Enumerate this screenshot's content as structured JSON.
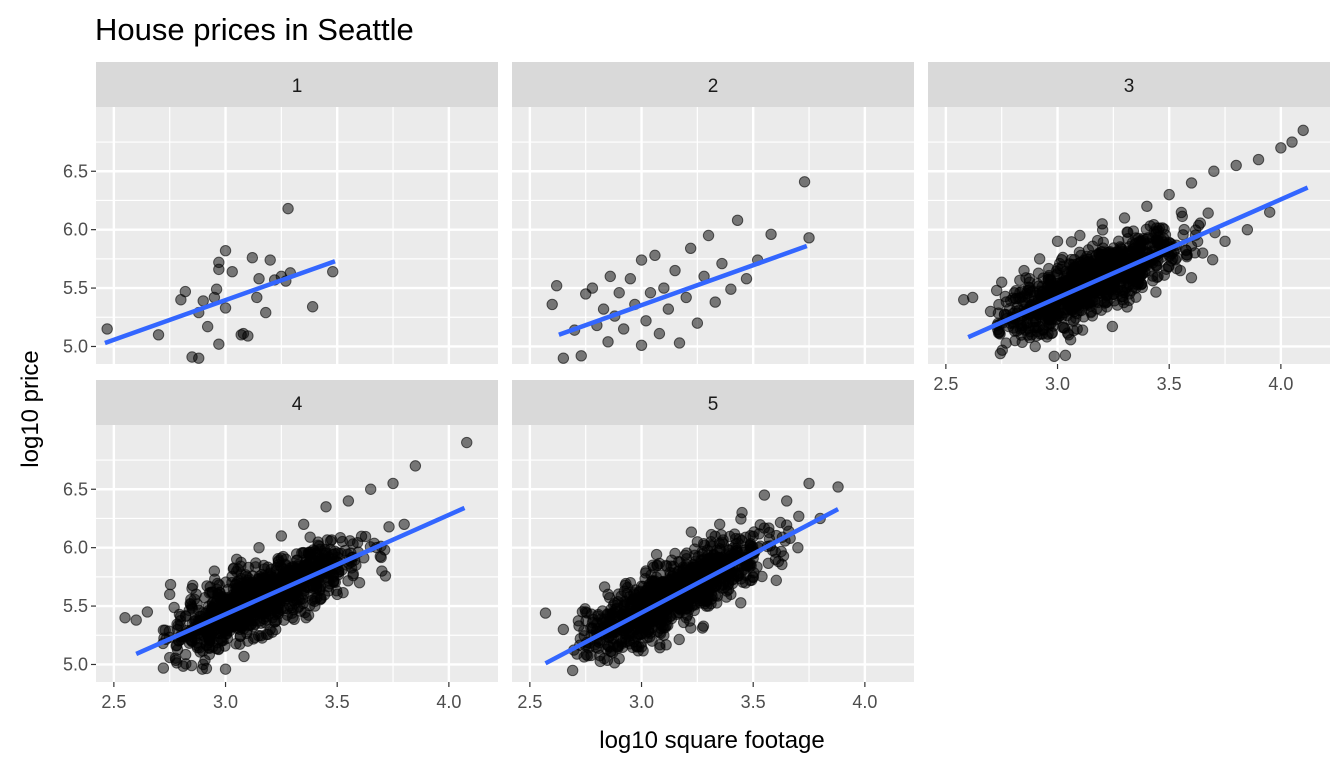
{
  "chart_data": {
    "type": "scatter",
    "title": "House prices in Seattle",
    "xlabel": "log10 square footage",
    "ylabel": "log10 price",
    "xlim": [
      2.42,
      4.22
    ],
    "ylim": [
      4.85,
      7.05
    ],
    "x_ticks": [
      2.5,
      3.0,
      3.5,
      4.0
    ],
    "x_tick_labels": [
      "2.5",
      "3.0",
      "3.5",
      "4.0"
    ],
    "y_ticks": [
      5.0,
      5.5,
      6.0,
      6.5
    ],
    "y_tick_labels": [
      "5.0",
      "5.5",
      "6.0",
      "6.5"
    ],
    "grid": true,
    "colors": {
      "points": "#000000",
      "fit_line": "#3366ff",
      "panel_background": "#ebebeb",
      "strip_background": "#d9d9d9",
      "grid": "#ffffff"
    },
    "facets": [
      {
        "label": "1",
        "fit": {
          "x": [
            2.46,
            3.49
          ],
          "y": [
            5.03,
            5.73
          ]
        },
        "points": [
          [
            2.47,
            5.15
          ],
          [
            2.7,
            5.1
          ],
          [
            2.8,
            5.4
          ],
          [
            2.82,
            5.47
          ],
          [
            2.85,
            4.91
          ],
          [
            2.88,
            4.9
          ],
          [
            2.88,
            5.29
          ],
          [
            2.9,
            5.39
          ],
          [
            2.92,
            5.17
          ],
          [
            2.95,
            5.42
          ],
          [
            2.96,
            5.49
          ],
          [
            2.97,
            5.02
          ],
          [
            2.97,
            5.66
          ],
          [
            2.97,
            5.72
          ],
          [
            3.0,
            5.33
          ],
          [
            3.0,
            5.82
          ],
          [
            3.03,
            5.64
          ],
          [
            3.07,
            5.1
          ],
          [
            3.08,
            5.11
          ],
          [
            3.1,
            5.09
          ],
          [
            3.12,
            5.76
          ],
          [
            3.14,
            5.42
          ],
          [
            3.15,
            5.58
          ],
          [
            3.18,
            5.29
          ],
          [
            3.2,
            5.74
          ],
          [
            3.22,
            5.57
          ],
          [
            3.25,
            5.6
          ],
          [
            3.27,
            5.56
          ],
          [
            3.28,
            6.18
          ],
          [
            3.29,
            5.63
          ],
          [
            3.39,
            5.34
          ],
          [
            3.48,
            5.64
          ]
        ]
      },
      {
        "label": "2",
        "fit": {
          "x": [
            2.63,
            3.74
          ],
          "y": [
            5.1,
            5.86
          ]
        },
        "points": [
          [
            2.6,
            5.36
          ],
          [
            2.62,
            5.52
          ],
          [
            2.65,
            4.9
          ],
          [
            2.7,
            5.14
          ],
          [
            2.73,
            4.92
          ],
          [
            2.75,
            5.45
          ],
          [
            2.78,
            5.5
          ],
          [
            2.8,
            5.18
          ],
          [
            2.83,
            5.32
          ],
          [
            2.85,
            5.04
          ],
          [
            2.86,
            5.6
          ],
          [
            2.88,
            5.26
          ],
          [
            2.9,
            5.46
          ],
          [
            2.92,
            5.15
          ],
          [
            2.95,
            5.58
          ],
          [
            2.97,
            5.36
          ],
          [
            3.0,
            5.01
          ],
          [
            3.0,
            5.74
          ],
          [
            3.02,
            5.22
          ],
          [
            3.04,
            5.46
          ],
          [
            3.06,
            5.78
          ],
          [
            3.08,
            5.11
          ],
          [
            3.1,
            5.5
          ],
          [
            3.12,
            5.32
          ],
          [
            3.15,
            5.65
          ],
          [
            3.17,
            5.03
          ],
          [
            3.2,
            5.42
          ],
          [
            3.22,
            5.84
          ],
          [
            3.25,
            5.2
          ],
          [
            3.28,
            5.6
          ],
          [
            3.3,
            5.95
          ],
          [
            3.33,
            5.38
          ],
          [
            3.36,
            5.71
          ],
          [
            3.4,
            5.49
          ],
          [
            3.43,
            6.08
          ],
          [
            3.47,
            5.58
          ],
          [
            3.52,
            5.74
          ],
          [
            3.58,
            5.96
          ],
          [
            3.73,
            6.41
          ],
          [
            3.75,
            5.93
          ]
        ]
      },
      {
        "label": "3",
        "fit": {
          "x": [
            2.6,
            4.12
          ],
          "y": [
            5.08,
            6.36
          ]
        },
        "points": [
          [
            2.58,
            5.4
          ],
          [
            2.62,
            5.42
          ],
          [
            2.7,
            5.3
          ],
          [
            2.75,
            5.55
          ],
          [
            2.8,
            5.2
          ],
          [
            2.85,
            5.65
          ],
          [
            2.9,
            5.0
          ],
          [
            2.92,
            5.75
          ],
          [
            2.95,
            5.35
          ],
          [
            3.0,
            5.9
          ],
          [
            3.05,
            5.1
          ],
          [
            3.1,
            5.95
          ],
          [
            3.15,
            5.3
          ],
          [
            3.2,
            6.05
          ],
          [
            3.25,
            5.45
          ],
          [
            3.3,
            6.1
          ],
          [
            3.35,
            5.5
          ],
          [
            3.4,
            6.2
          ],
          [
            3.45,
            5.6
          ],
          [
            3.5,
            6.3
          ],
          [
            3.55,
            5.65
          ],
          [
            3.6,
            6.4
          ],
          [
            3.65,
            5.8
          ],
          [
            3.7,
            6.5
          ],
          [
            3.75,
            5.9
          ],
          [
            3.8,
            6.55
          ],
          [
            3.85,
            6.0
          ],
          [
            3.9,
            6.6
          ],
          [
            3.95,
            6.15
          ],
          [
            4.0,
            6.7
          ],
          [
            4.05,
            6.75
          ],
          [
            4.1,
            6.85
          ]
        ],
        "dense_cloud": true
      },
      {
        "label": "4",
        "fit": {
          "x": [
            2.6,
            4.07
          ],
          "y": [
            5.09,
            6.34
          ]
        },
        "points": [
          [
            2.55,
            5.4
          ],
          [
            2.6,
            5.38
          ],
          [
            2.65,
            5.45
          ],
          [
            2.72,
            5.18
          ],
          [
            2.75,
            5.6
          ],
          [
            2.8,
            5.25
          ],
          [
            2.85,
            5.65
          ],
          [
            2.9,
            5.0
          ],
          [
            2.95,
            5.8
          ],
          [
            3.0,
            4.96
          ],
          [
            3.05,
            5.9
          ],
          [
            3.1,
            5.2
          ],
          [
            3.15,
            6.0
          ],
          [
            3.2,
            5.3
          ],
          [
            3.25,
            6.1
          ],
          [
            3.3,
            5.4
          ],
          [
            3.35,
            6.2
          ],
          [
            3.4,
            5.5
          ],
          [
            3.45,
            6.35
          ],
          [
            3.5,
            5.6
          ],
          [
            3.55,
            6.4
          ],
          [
            3.6,
            5.7
          ],
          [
            3.65,
            6.5
          ],
          [
            3.7,
            5.8
          ],
          [
            3.75,
            6.55
          ],
          [
            3.8,
            6.2
          ],
          [
            3.85,
            6.7
          ],
          [
            4.08,
            6.9
          ]
        ],
        "dense_cloud": true
      },
      {
        "label": "5",
        "fit": {
          "x": [
            2.57,
            3.88
          ],
          "y": [
            5.01,
            6.33
          ]
        },
        "points": [
          [
            2.57,
            5.44
          ],
          [
            2.65,
            5.3
          ],
          [
            2.72,
            5.33
          ],
          [
            2.75,
            5.45
          ],
          [
            2.8,
            5.22
          ],
          [
            2.85,
            5.6
          ],
          [
            2.9,
            5.05
          ],
          [
            2.95,
            5.7
          ],
          [
            3.0,
            5.15
          ],
          [
            3.05,
            5.85
          ],
          [
            3.1,
            5.25
          ],
          [
            3.15,
            5.95
          ],
          [
            3.2,
            5.4
          ],
          [
            3.25,
            6.05
          ],
          [
            3.3,
            5.5
          ],
          [
            3.35,
            6.2
          ],
          [
            3.4,
            5.6
          ],
          [
            3.45,
            6.3
          ],
          [
            3.5,
            5.75
          ],
          [
            3.55,
            6.45
          ],
          [
            3.6,
            5.9
          ],
          [
            3.65,
            6.4
          ],
          [
            3.7,
            6.0
          ],
          [
            3.75,
            6.55
          ],
          [
            3.8,
            6.25
          ],
          [
            3.88,
            6.52
          ]
        ],
        "dense_cloud": true
      }
    ]
  }
}
